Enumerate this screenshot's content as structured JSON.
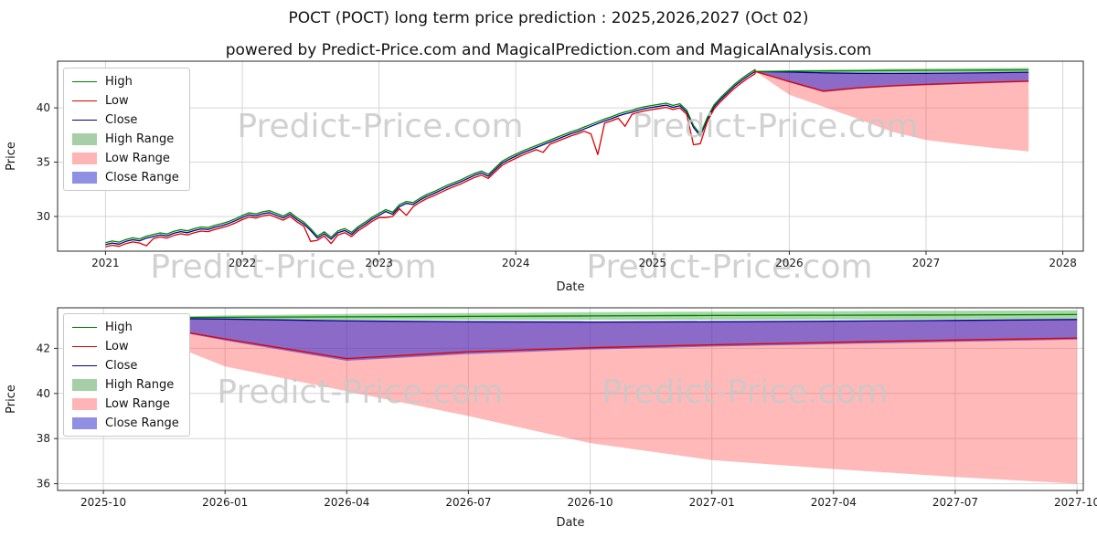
{
  "page": {
    "title": "POCT (POCT) long term price prediction : 2025,2026,2027 (Oct 02)",
    "subtitle": "powered by Predict-Price.com and MagicalPrediction.com and MagicalAnalysis.com"
  },
  "watermark": {
    "text": "Predict-Price.com",
    "color": "#c9c9c9",
    "size": 36
  },
  "colors": {
    "grid": "#d6d6d6",
    "axis": "#2a2a2a",
    "tick_text": "#1a1a1a"
  },
  "series_colors": {
    "high": "#008000",
    "low": "#dd0000",
    "close": "#00008b",
    "high_band": "rgba(0,140,0,0.35)",
    "low_band": "rgba(255,70,70,0.38)",
    "close_band": "rgba(35,35,215,0.52)"
  },
  "legend": {
    "items": [
      {
        "label": "High",
        "type": "line",
        "color": "#008000"
      },
      {
        "label": "Low",
        "type": "line",
        "color": "#dd0000"
      },
      {
        "label": "Close",
        "type": "line",
        "color": "#00008b"
      },
      {
        "label": "High Range",
        "type": "patch",
        "color": "#a7cfa7"
      },
      {
        "label": "Low Range",
        "type": "patch",
        "color": "#ffb5b5"
      },
      {
        "label": "Close Range",
        "type": "patch",
        "color": "#8f8fe3"
      }
    ]
  },
  "chart_data": [
    {
      "type": "line",
      "name": "historical-and-prediction",
      "xlabel": "Date",
      "ylabel": "Price",
      "xlim": [
        2020.65,
        2028.15
      ],
      "ylim": [
        26.8,
        44.3
      ],
      "x_ticks": [
        [
          2021,
          "2021"
        ],
        [
          2022,
          "2022"
        ],
        [
          2023,
          "2023"
        ],
        [
          2024,
          "2024"
        ],
        [
          2025,
          "2025"
        ],
        [
          2026,
          "2026"
        ],
        [
          2027,
          "2027"
        ],
        [
          2028,
          "2028"
        ]
      ],
      "y_ticks": [
        [
          30,
          "30"
        ],
        [
          35,
          "35"
        ],
        [
          40,
          "40"
        ]
      ],
      "legend_entries": [
        "High",
        "Low",
        "Close",
        "High Range",
        "Low Range",
        "Close Range"
      ],
      "hist": {
        "x0": 2021.0,
        "dx": 0.05,
        "close": [
          27.4,
          27.55,
          27.45,
          27.7,
          27.85,
          27.75,
          28.0,
          28.15,
          28.3,
          28.2,
          28.45,
          28.6,
          28.5,
          28.7,
          28.85,
          28.8,
          29.0,
          29.15,
          29.35,
          29.6,
          29.9,
          30.15,
          30.05,
          30.25,
          30.35,
          30.1,
          29.85,
          30.2,
          29.7,
          29.3,
          28.7,
          28.0,
          28.4,
          27.9,
          28.5,
          28.7,
          28.35,
          28.9,
          29.3,
          29.75,
          30.1,
          30.45,
          30.2,
          30.9,
          31.2,
          31.1,
          31.5,
          31.85,
          32.1,
          32.4,
          32.7,
          32.95,
          33.2,
          33.5,
          33.8,
          34.0,
          33.7,
          34.3,
          34.9,
          35.25,
          35.55,
          35.85,
          36.1,
          36.35,
          36.6,
          36.85,
          37.1,
          37.35,
          37.6,
          37.8,
          38.05,
          38.3,
          38.55,
          38.8,
          39.0,
          39.25,
          39.45,
          39.6,
          39.8,
          39.95,
          40.05,
          40.15,
          40.25,
          40.05,
          40.2,
          39.6,
          38.2,
          37.4,
          38.9,
          40.1,
          40.8,
          41.4,
          42.0,
          42.5,
          42.95,
          43.35
        ],
        "high": [
          27.58,
          27.73,
          27.63,
          27.88,
          28.03,
          27.93,
          28.18,
          28.33,
          28.48,
          28.38,
          28.63,
          28.78,
          28.68,
          28.88,
          29.03,
          28.98,
          29.18,
          29.33,
          29.53,
          29.78,
          30.08,
          30.33,
          30.23,
          30.43,
          30.53,
          30.28,
          30.03,
          30.38,
          29.88,
          29.48,
          28.88,
          28.18,
          28.58,
          28.08,
          28.68,
          28.88,
          28.53,
          29.08,
          29.48,
          29.93,
          30.28,
          30.63,
          30.38,
          31.08,
          31.38,
          31.28,
          31.68,
          32.03,
          32.28,
          32.58,
          32.88,
          33.13,
          33.38,
          33.68,
          33.98,
          34.18,
          33.88,
          34.48,
          35.08,
          35.43,
          35.73,
          36.03,
          36.28,
          36.53,
          36.78,
          37.03,
          37.28,
          37.53,
          37.78,
          37.98,
          38.23,
          38.48,
          38.73,
          38.98,
          39.18,
          39.43,
          39.63,
          39.78,
          39.98,
          40.13,
          40.23,
          40.33,
          40.43,
          40.23,
          40.38,
          39.78,
          38.38,
          37.58,
          39.08,
          40.28,
          40.98,
          41.58,
          42.18,
          42.68,
          43.13,
          43.53
        ],
        "low": [
          27.2,
          27.35,
          27.25,
          27.5,
          27.65,
          27.55,
          27.3,
          27.95,
          28.1,
          28.0,
          28.25,
          28.4,
          28.3,
          28.5,
          28.65,
          28.6,
          28.8,
          28.95,
          29.15,
          29.4,
          29.7,
          29.95,
          29.85,
          30.05,
          30.15,
          29.9,
          29.65,
          30.0,
          29.5,
          29.1,
          27.7,
          27.8,
          28.2,
          27.5,
          28.3,
          28.5,
          28.15,
          28.7,
          29.1,
          29.55,
          29.9,
          29.9,
          30.0,
          30.7,
          30.1,
          30.9,
          31.3,
          31.65,
          31.9,
          32.2,
          32.5,
          32.75,
          33.0,
          33.3,
          33.6,
          33.8,
          33.5,
          34.1,
          34.7,
          35.05,
          35.35,
          35.65,
          35.9,
          36.15,
          35.9,
          36.65,
          36.9,
          37.15,
          37.4,
          37.6,
          37.85,
          37.6,
          35.7,
          38.6,
          38.8,
          39.05,
          38.3,
          39.4,
          39.6,
          39.75,
          39.85,
          39.95,
          40.05,
          39.85,
          40.0,
          39.4,
          36.6,
          36.7,
          38.7,
          39.9,
          40.6,
          41.2,
          41.8,
          42.3,
          42.75,
          43.15
        ]
      },
      "pred": {
        "x": [
          2025.75,
          2026.0,
          2026.25,
          2026.5,
          2026.75,
          2027.0,
          2027.25,
          2027.5,
          2027.75
        ],
        "high": [
          43.35,
          43.38,
          43.4,
          43.42,
          43.44,
          43.46,
          43.47,
          43.48,
          43.5
        ],
        "low": [
          43.35,
          42.42,
          41.55,
          41.85,
          42.03,
          42.16,
          42.27,
          42.37,
          42.46
        ],
        "close": [
          43.35,
          43.3,
          43.22,
          43.18,
          43.17,
          43.18,
          43.21,
          43.24,
          43.28
        ],
        "high_band_top": [
          43.35,
          43.46,
          43.53,
          43.57,
          43.6,
          43.63,
          43.65,
          43.67,
          43.69
        ],
        "high_band_bottom": [
          43.35,
          43.31,
          43.27,
          43.26,
          43.26,
          43.27,
          43.28,
          43.29,
          43.31
        ],
        "close_band_bottom": [
          43.35,
          42.35,
          41.45,
          41.75,
          41.95,
          42.08,
          42.19,
          42.29,
          42.39
        ],
        "low_band_bottom": [
          43.35,
          41.2,
          40.1,
          39.0,
          37.8,
          37.05,
          36.65,
          36.3,
          36.0
        ]
      },
      "watermarks": [
        {
          "fx": 0.315,
          "fy": 0.4
        },
        {
          "fx": 0.7,
          "fy": 0.4
        },
        {
          "fx": 0.23,
          "fy": 1.14
        },
        {
          "fx": 0.655,
          "fy": 1.14
        }
      ]
    },
    {
      "type": "line",
      "name": "prediction-detail",
      "xlabel": "Date",
      "ylabel": "Price",
      "xlim": [
        2025.656,
        2027.763
      ],
      "ylim": [
        35.7,
        43.8
      ],
      "x_ticks": [
        [
          2025.75,
          "2025-10"
        ],
        [
          2026.0,
          "2026-01"
        ],
        [
          2026.25,
          "2026-04"
        ],
        [
          2026.5,
          "2026-07"
        ],
        [
          2026.75,
          "2026-10"
        ],
        [
          2027.0,
          "2027-01"
        ],
        [
          2027.25,
          "2027-04"
        ],
        [
          2027.5,
          "2027-07"
        ],
        [
          2027.75,
          "2027-10"
        ]
      ],
      "y_ticks": [
        [
          36,
          "36"
        ],
        [
          38,
          "38"
        ],
        [
          40,
          "40"
        ],
        [
          42,
          "42"
        ]
      ],
      "legend_entries": [
        "High",
        "Low",
        "Close",
        "High Range",
        "Low Range",
        "Close Range"
      ],
      "pred_note": "same prediction series as chart_data[0].pred",
      "watermarks": [
        {
          "fx": 0.295,
          "fy": 0.52
        },
        {
          "fx": 0.67,
          "fy": 0.52
        }
      ]
    }
  ]
}
